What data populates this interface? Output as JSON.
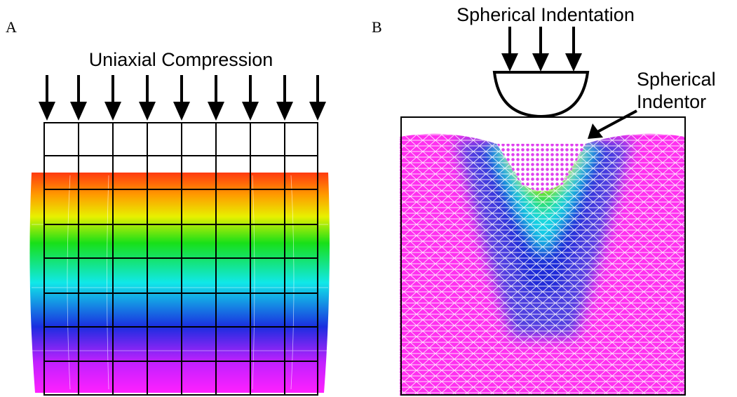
{
  "panel_a": {
    "label": "A",
    "title": "Uniaxial Compression"
  },
  "panel_b": {
    "label": "B",
    "title": "Spherical Indentation",
    "annotation": [
      "Spherical",
      "Indentor"
    ]
  }
}
